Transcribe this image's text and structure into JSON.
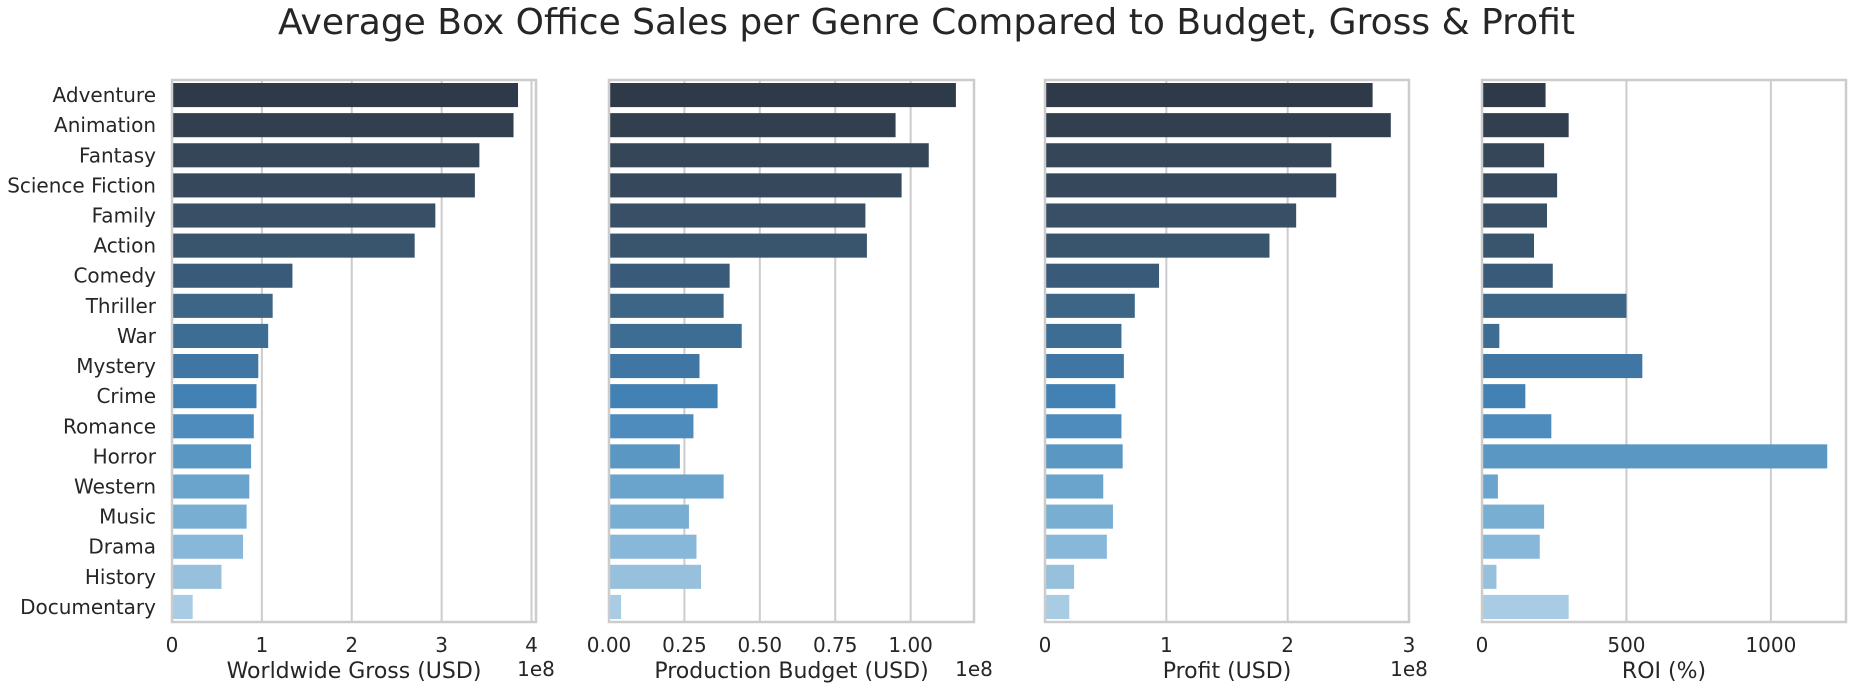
{
  "title": "Average Box Office Sales per Genre Compared to Budget, Gross & Profit",
  "chart_data": [
    {
      "type": "bar",
      "orientation": "horizontal",
      "categories": [
        "Adventure",
        "Animation",
        "Fantasy",
        "Science Fiction",
        "Family",
        "Action",
        "Comedy",
        "Thriller",
        "War",
        "Mystery",
        "Crime",
        "Romance",
        "Horror",
        "Western",
        "Music",
        "Drama",
        "History",
        "Documentary"
      ],
      "values": [
        3.85,
        3.8,
        3.42,
        3.37,
        2.93,
        2.7,
        1.34,
        1.12,
        1.07,
        0.96,
        0.94,
        0.91,
        0.88,
        0.86,
        0.83,
        0.79,
        0.55,
        0.23
      ],
      "xlabel": "Worldwide Gross (USD)",
      "offset_label": "1e8",
      "xlim": [
        0,
        4.05
      ],
      "xticks": [
        0,
        1,
        2,
        3,
        4
      ],
      "xtick_labels": [
        "0",
        "1",
        "2",
        "3",
        "4"
      ],
      "show_category_labels": true,
      "grid": "x"
    },
    {
      "type": "bar",
      "orientation": "horizontal",
      "categories": [
        "Adventure",
        "Animation",
        "Fantasy",
        "Science Fiction",
        "Family",
        "Action",
        "Comedy",
        "Thriller",
        "War",
        "Mystery",
        "Crime",
        "Romance",
        "Horror",
        "Western",
        "Music",
        "Drama",
        "History",
        "Documentary"
      ],
      "values": [
        1.15,
        0.95,
        1.06,
        0.97,
        0.85,
        0.855,
        0.4,
        0.38,
        0.44,
        0.3,
        0.36,
        0.28,
        0.235,
        0.38,
        0.265,
        0.29,
        0.305,
        0.04
      ],
      "xlabel": "Production Budget (USD)",
      "offset_label": "1e8",
      "xlim": [
        0,
        1.21
      ],
      "xticks": [
        0,
        0.25,
        0.5,
        0.75,
        1.0
      ],
      "xtick_labels": [
        "0.00",
        "0.25",
        "0.50",
        "0.75",
        "1.00"
      ],
      "show_category_labels": false,
      "grid": "x"
    },
    {
      "type": "bar",
      "orientation": "horizontal",
      "categories": [
        "Adventure",
        "Animation",
        "Fantasy",
        "Science Fiction",
        "Family",
        "Action",
        "Comedy",
        "Thriller",
        "War",
        "Mystery",
        "Crime",
        "Romance",
        "Horror",
        "Western",
        "Music",
        "Drama",
        "History",
        "Documentary"
      ],
      "values": [
        2.7,
        2.85,
        2.36,
        2.4,
        2.07,
        1.85,
        0.94,
        0.74,
        0.63,
        0.65,
        0.58,
        0.63,
        0.64,
        0.48,
        0.56,
        0.51,
        0.24,
        0.2
      ],
      "xlabel": "Profit (USD)",
      "offset_label": "1e8",
      "xlim": [
        0,
        3.0
      ],
      "xticks": [
        0,
        1,
        2,
        3
      ],
      "xtick_labels": [
        "0",
        "1",
        "2",
        "3"
      ],
      "show_category_labels": false,
      "grid": "x"
    },
    {
      "type": "bar",
      "orientation": "horizontal",
      "categories": [
        "Adventure",
        "Animation",
        "Fantasy",
        "Science Fiction",
        "Family",
        "Action",
        "Comedy",
        "Thriller",
        "War",
        "Mystery",
        "Crime",
        "Romance",
        "Horror",
        "Western",
        "Music",
        "Drama",
        "History",
        "Documentary"
      ],
      "values": [
        220,
        300,
        215,
        260,
        225,
        180,
        245,
        500,
        60,
        555,
        150,
        240,
        1195,
        55,
        215,
        200,
        50,
        300
      ],
      "xlabel": "ROI (%)",
      "offset_label": "",
      "xlim": [
        0,
        1260
      ],
      "xticks": [
        0,
        500,
        1000
      ],
      "xtick_labels": [
        "0",
        "500",
        "1000"
      ],
      "show_category_labels": false,
      "grid": "x"
    }
  ],
  "palette": [
    "#2e3a48",
    "#323f4f",
    "#344657",
    "#36495c",
    "#384f66",
    "#39546d",
    "#3a5a79",
    "#3c6586",
    "#3e6d93",
    "#3f76a3",
    "#4281b3",
    "#4d8cbd",
    "#5a97c3",
    "#6aa3cb",
    "#78aed2",
    "#88b8d9",
    "#96c0dc",
    "#a7cce4"
  ]
}
